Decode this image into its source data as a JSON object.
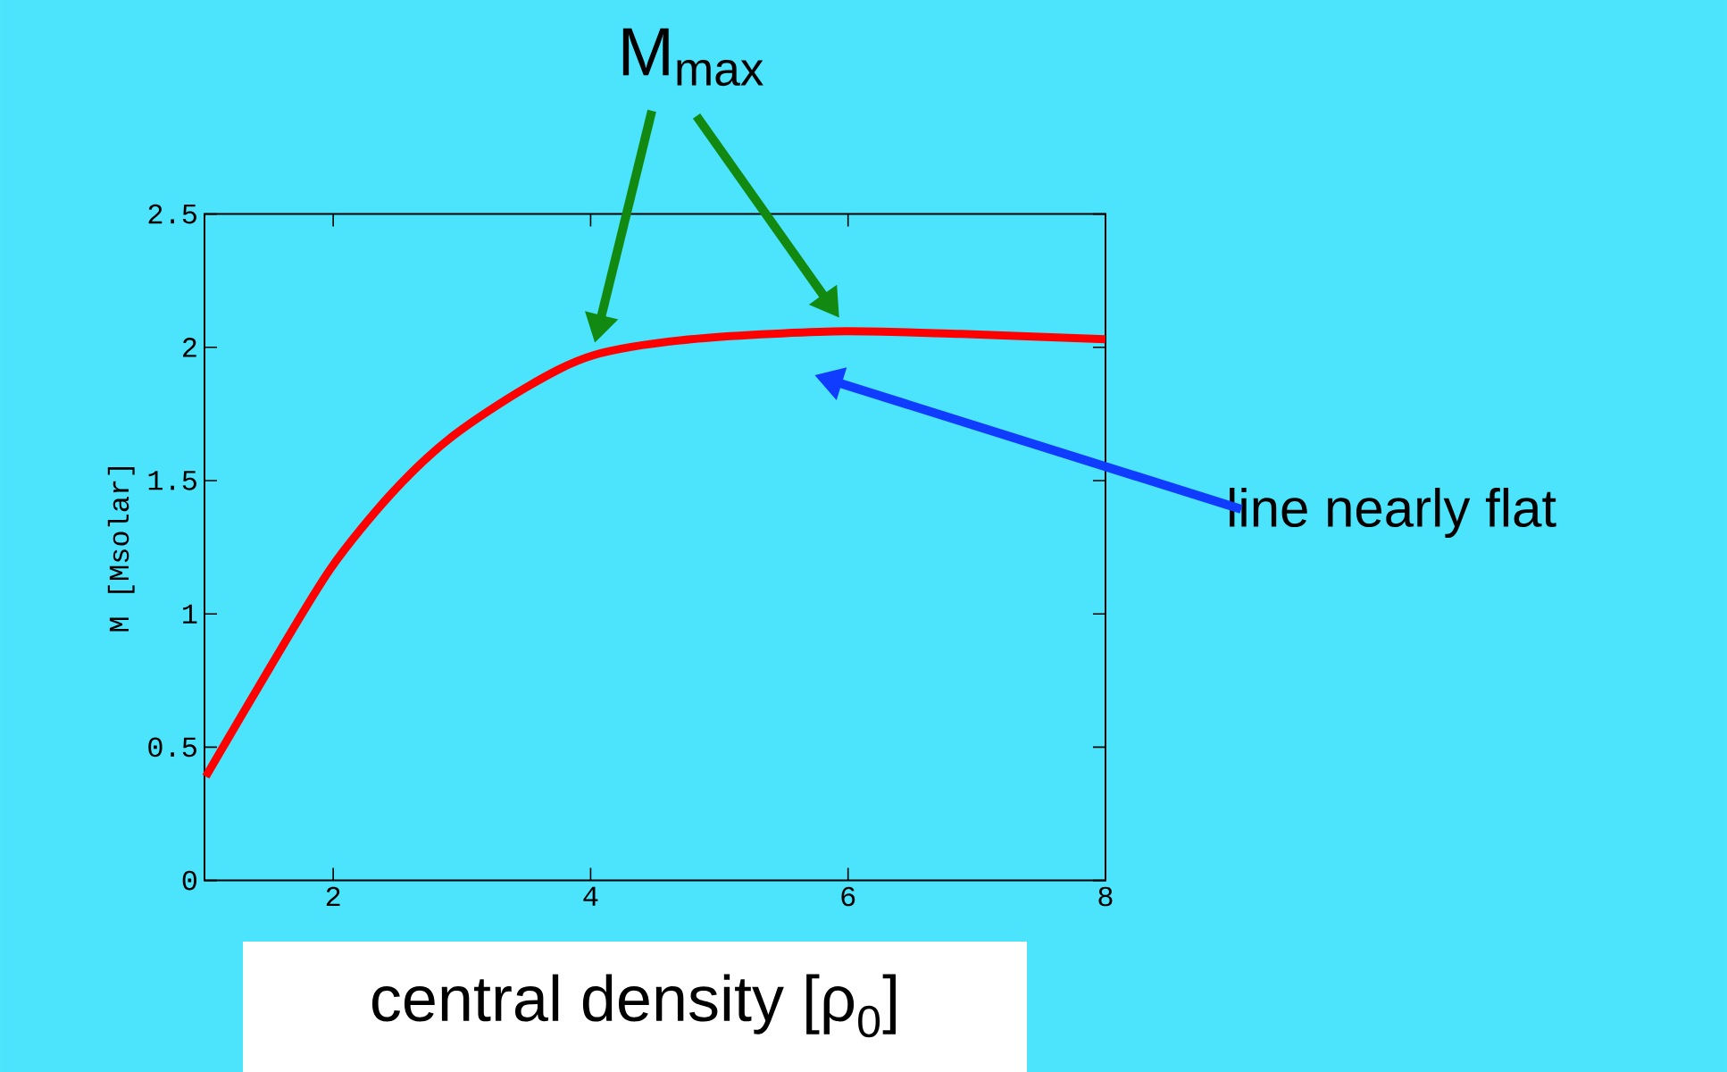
{
  "chart_data": {
    "type": "line",
    "xlabel": "central density [ρ$_{0}$]",
    "ylabel": "M [Msolar]",
    "x": [
      1.01,
      1.51,
      1.98,
      2.45,
      2.91,
      3.5,
      4.02,
      4.78,
      5.89,
      6.88,
      8
    ],
    "series": [
      {
        "color": "#ff0000",
        "values": [
          0.39,
          0.8,
          1.17,
          1.45,
          1.66,
          1.85,
          1.97,
          2.03,
          2.06,
          2.05,
          2.03
        ]
      }
    ],
    "xlim": [
      1,
      8
    ],
    "ylim": [
      0,
      2.5
    ],
    "xticks": [
      2,
      4,
      6,
      8
    ],
    "yticks": [
      0,
      0.5,
      1,
      1.5,
      2,
      2.5
    ],
    "annotations": [
      "M$_{max}$",
      "line nearly flat"
    ]
  }
}
